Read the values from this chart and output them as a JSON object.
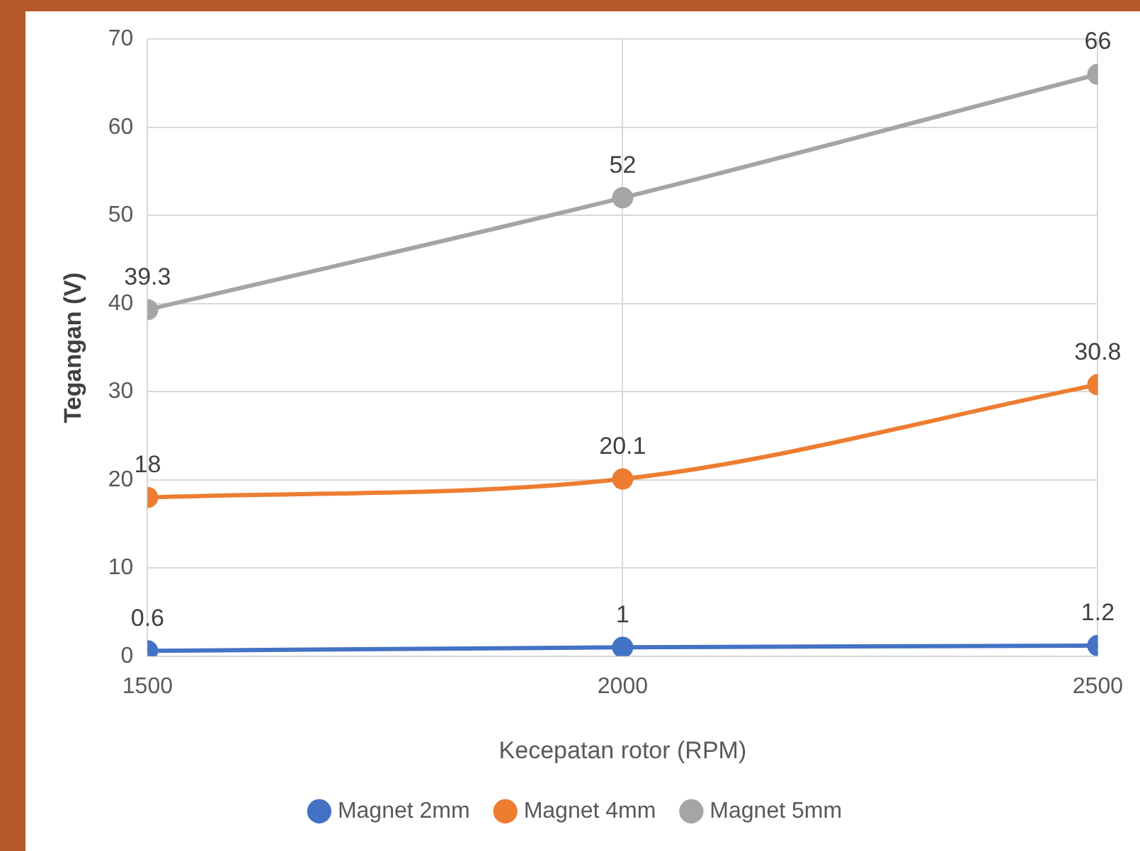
{
  "chart_data": {
    "type": "line",
    "xlabel": "Kecepatan rotor (RPM)",
    "ylabel": "Tegangan (V)",
    "x": [
      1500,
      2000,
      2500
    ],
    "series": [
      {
        "name": "Magnet 2mm",
        "color": "#4472c4",
        "values": [
          0.6,
          1,
          1.2
        ]
      },
      {
        "name": "Magnet 4mm",
        "color": "#ed7d31",
        "values": [
          18,
          20.1,
          30.8
        ]
      },
      {
        "name": "Magnet 5mm",
        "color": "#a5a5a5",
        "values": [
          39.3,
          52,
          66
        ]
      }
    ],
    "xlim": [
      1500,
      2500
    ],
    "xticks": [
      1500,
      2000,
      2500
    ],
    "ylim": [
      0,
      70
    ],
    "yticks": [
      0,
      10,
      20,
      30,
      40,
      50,
      60,
      70
    ],
    "grid": true,
    "legend": "bottom",
    "marker": "circle",
    "line_style": "solid",
    "data_labels": true
  }
}
